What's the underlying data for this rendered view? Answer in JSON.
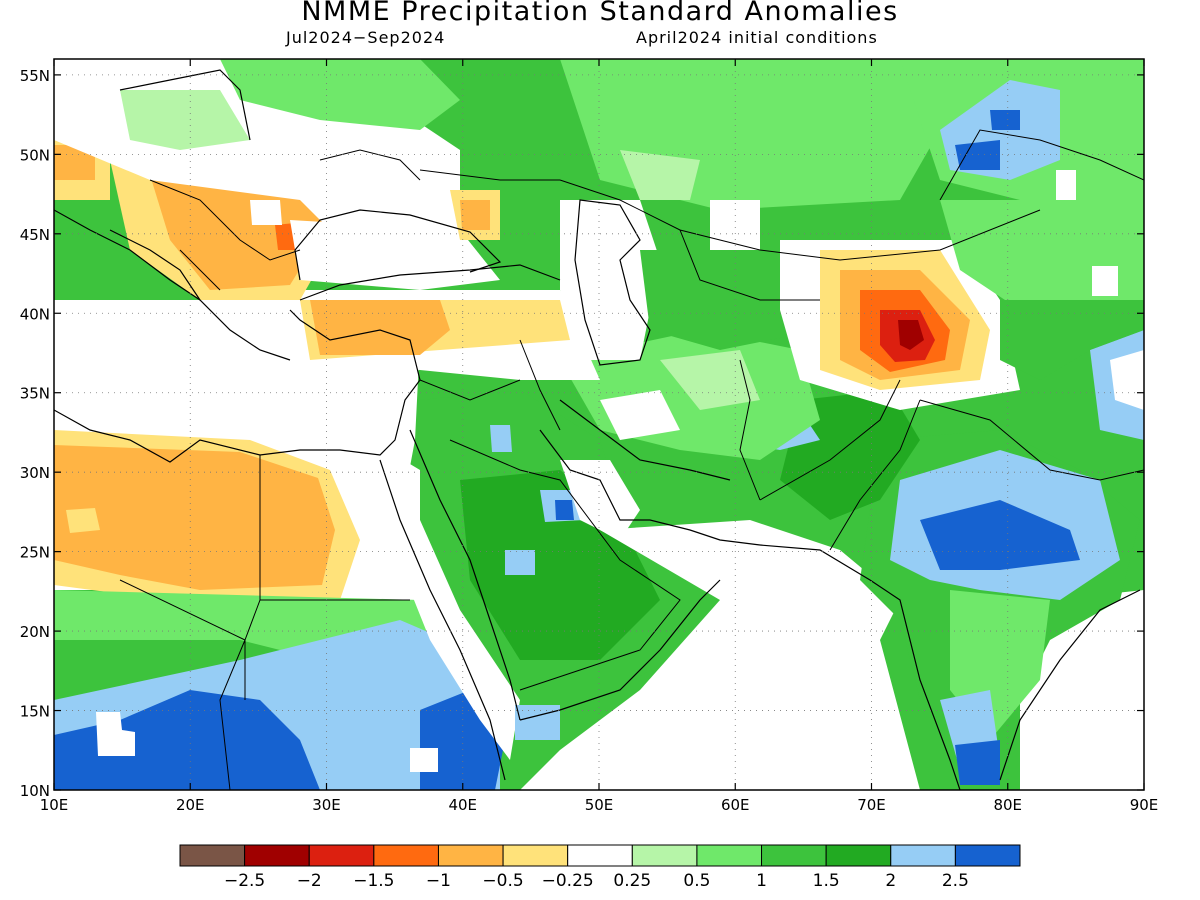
{
  "title": "NMME Precipitation Standard Anomalies",
  "subtitle_left": "Jul2024−Sep2024",
  "subtitle_right": "April2024 initial conditions",
  "map_extent": {
    "lon_min": 10,
    "lon_max": 90,
    "lat_min": 10,
    "lat_max": 56
  },
  "lat_ticks": [
    {
      "value": 55,
      "label": "55N"
    },
    {
      "value": 50,
      "label": "50N"
    },
    {
      "value": 45,
      "label": "45N"
    },
    {
      "value": 40,
      "label": "40N"
    },
    {
      "value": 35,
      "label": "35N"
    },
    {
      "value": 30,
      "label": "30N"
    },
    {
      "value": 25,
      "label": "25N"
    },
    {
      "value": 20,
      "label": "20N"
    },
    {
      "value": 15,
      "label": "15N"
    },
    {
      "value": 10,
      "label": "10N"
    }
  ],
  "lon_ticks": [
    {
      "value": 10,
      "label": "10E"
    },
    {
      "value": 20,
      "label": "20E"
    },
    {
      "value": 30,
      "label": "30E"
    },
    {
      "value": 40,
      "label": "40E"
    },
    {
      "value": 50,
      "label": "50E"
    },
    {
      "value": 60,
      "label": "60E"
    },
    {
      "value": 70,
      "label": "70E"
    },
    {
      "value": 80,
      "label": "80E"
    },
    {
      "value": 90,
      "label": "90E"
    }
  ],
  "colorbar": {
    "colors": [
      "#7a5546",
      "#a00000",
      "#dc2010",
      "#ff6a10",
      "#ffb444",
      "#ffe27a",
      "#ffffff",
      "#b6f5a8",
      "#6fe86a",
      "#3dc33d",
      "#22aa22",
      "#96cdf5",
      "#1662d0"
    ],
    "labels": [
      "−2.5",
      "−2",
      "−1.5",
      "−1",
      "−0.5",
      "−0.25",
      "0.25",
      "0.5",
      "1",
      "1.5",
      "2",
      "2.5"
    ]
  },
  "colors": {
    "white": "#ffffff",
    "light_green": "#b6f5a8",
    "green": "#6fe86a",
    "med_green": "#3dc33d",
    "dark_green": "#22aa22",
    "light_blue": "#96cdf5",
    "blue": "#1662d0",
    "yellow": "#ffe27a",
    "orange": "#ffb444",
    "dark_orange": "#ff6a10",
    "red": "#dc2010",
    "dark_red": "#a00000"
  }
}
